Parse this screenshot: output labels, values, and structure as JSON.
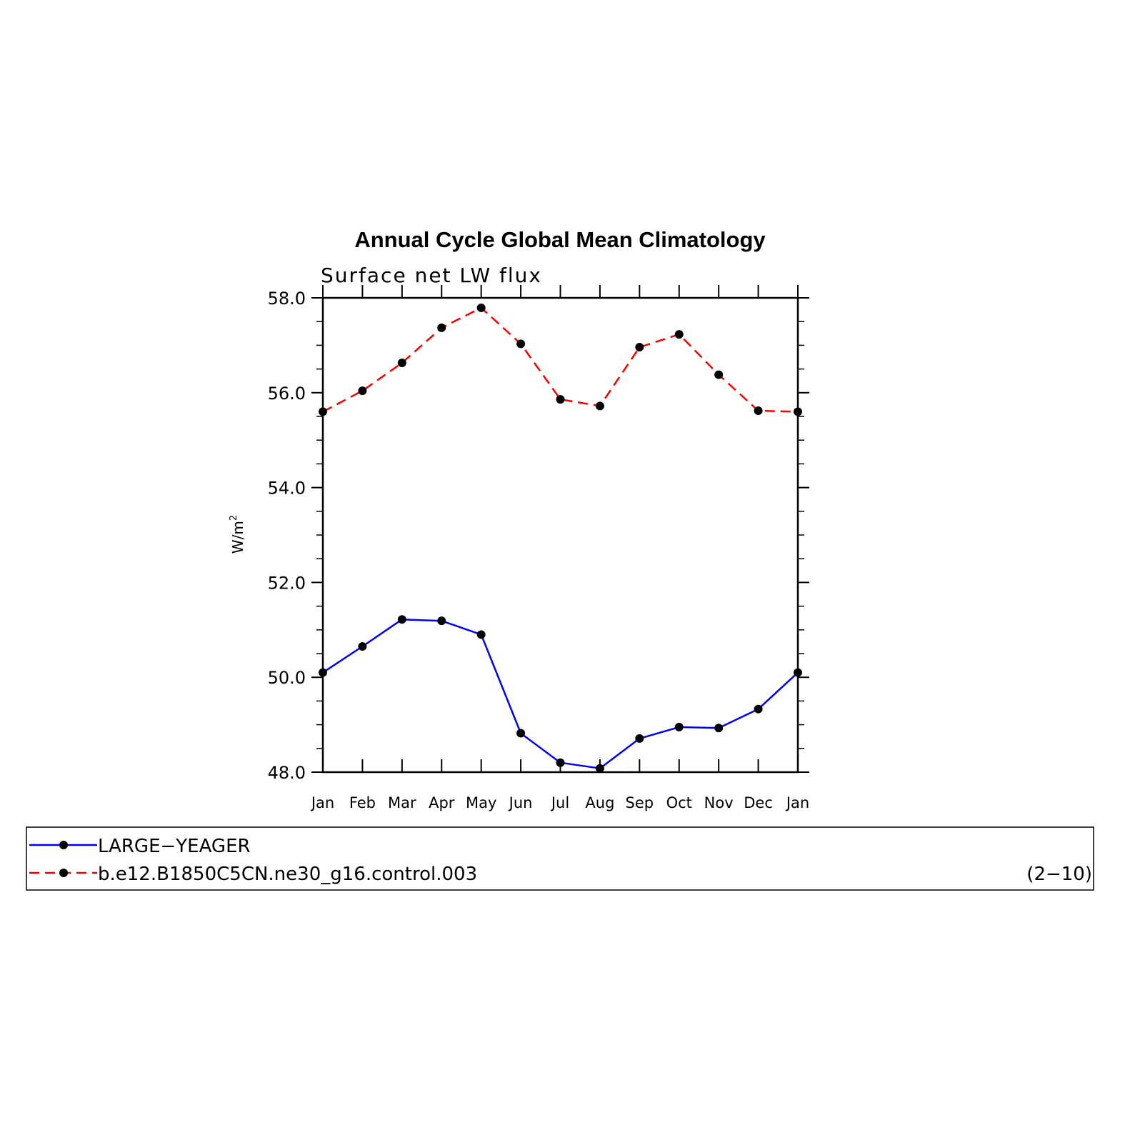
{
  "chart_data": {
    "type": "line",
    "title": "Annual Cycle Global Mean Climatology",
    "subtitle": "Surface net LW flux",
    "ylabel_base": "W/m",
    "ylabel_sup": "2",
    "ylim": [
      48.0,
      58.0
    ],
    "yticks": [
      "48.0",
      "50.0",
      "52.0",
      "54.0",
      "56.0",
      "58.0"
    ],
    "categories": [
      "Jan",
      "Feb",
      "Mar",
      "Apr",
      "May",
      "Jun",
      "Jul",
      "Aug",
      "Sep",
      "Oct",
      "Nov",
      "Dec",
      "Jan"
    ],
    "series": [
      {
        "name": "LARGE−YEAGER",
        "color": "#0000ff",
        "style": "solid",
        "values": [
          50.1,
          50.65,
          51.22,
          51.19,
          50.9,
          48.82,
          48.2,
          48.08,
          48.71,
          48.95,
          48.93,
          49.33,
          50.1
        ]
      },
      {
        "name": "b.e12.B1850C5CN.ne30_g16.control.003",
        "color": "#ff0000",
        "style": "dashed",
        "values": [
          55.6,
          56.04,
          56.63,
          57.37,
          57.79,
          57.03,
          55.86,
          55.72,
          56.96,
          57.23,
          56.38,
          55.62,
          55.6
        ]
      }
    ],
    "legend_note": "(2−10)",
    "marker_color": "#000000"
  }
}
